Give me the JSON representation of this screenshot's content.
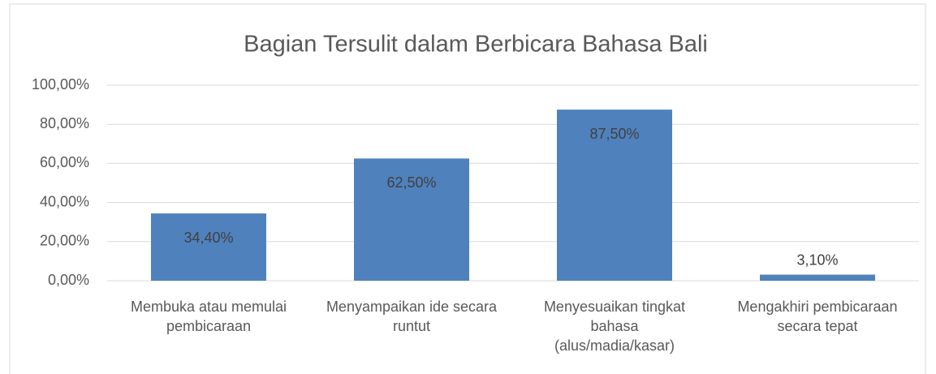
{
  "chart_data": {
    "type": "bar",
    "title": "Bagian Tersulit dalam Berbicara Bahasa Bali",
    "categories": [
      "Membuka atau memulai pembicaraan",
      "Menyampaikan ide secara runtut",
      "Menyesuaikan tingkat bahasa (alus/madia/kasar)",
      "Mengakhiri pembicaraan secara tepat"
    ],
    "values": [
      34.4,
      62.5,
      87.5,
      3.1
    ],
    "value_labels": [
      "34,40%",
      "62,50%",
      "87,50%",
      "3,10%"
    ],
    "color": "#4f81bd",
    "ylim": [
      0,
      100
    ],
    "yticks": [
      {
        "value": 0,
        "label": "0,00%"
      },
      {
        "value": 20,
        "label": "20,00%"
      },
      {
        "value": 40,
        "label": "40,00%"
      },
      {
        "value": 60,
        "label": "60,00%"
      },
      {
        "value": 80,
        "label": "80,00%"
      },
      {
        "value": 100,
        "label": "100,00%"
      }
    ],
    "grid": true
  }
}
